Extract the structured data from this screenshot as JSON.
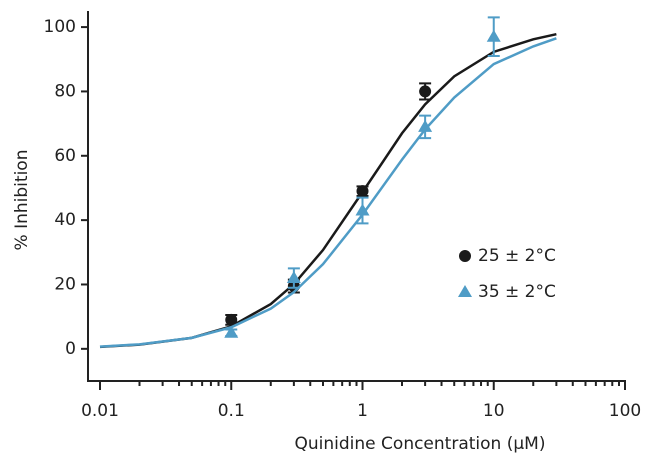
{
  "chart_data": {
    "type": "scatter",
    "xlabel": "Quinidine Concentration (µM)",
    "ylabel": "% Inhibition",
    "xscale": "log",
    "xlim": [
      0.01,
      100
    ],
    "ylim": [
      -10,
      105
    ],
    "xticks": [
      0.01,
      0.1,
      1,
      10,
      100
    ],
    "xminor_ticks": [
      0.02,
      0.03,
      0.04,
      0.05,
      0.06,
      0.07,
      0.08,
      0.09,
      0.2,
      0.3,
      0.4,
      0.5,
      0.6,
      0.7,
      0.8,
      0.9,
      2,
      3,
      4,
      5,
      6,
      7,
      8,
      9,
      20,
      30,
      40,
      50,
      60,
      70,
      80,
      90
    ],
    "yticks": [
      0,
      20,
      40,
      60,
      80,
      100
    ],
    "legend": "right",
    "series": [
      {
        "name": "25 ± 2°C",
        "color": "#1a1a1a",
        "marker": "circle",
        "x": [
          0.1,
          0.3,
          1,
          3
        ],
        "values": [
          9,
          19.5,
          49,
          80
        ],
        "errors": [
          1.5,
          2,
          1.5,
          2.5
        ],
        "fit": {
          "x": [
            0.01,
            0.02,
            0.05,
            0.1,
            0.2,
            0.3,
            0.5,
            1,
            2,
            3,
            5,
            10,
            20,
            30
          ],
          "values": [
            0.6,
            1.3,
            3.4,
            7,
            13.9,
            20.1,
            30.7,
            48.7,
            67,
            76,
            84.7,
            92.3,
            96.2,
            97.8
          ]
        }
      },
      {
        "name": "35 ± 2°C",
        "color": "#4f9cc6",
        "marker": "triangle",
        "x": [
          0.1,
          0.3,
          1,
          3,
          10
        ],
        "values": [
          5,
          22,
          43,
          69,
          97
        ],
        "errors": [
          1,
          3,
          4,
          3.5,
          6
        ],
        "fit": {
          "x": [
            0.01,
            0.02,
            0.05,
            0.1,
            0.2,
            0.3,
            0.5,
            1,
            2,
            3,
            5,
            10,
            20,
            30
          ],
          "values": [
            0.7,
            1.4,
            3.4,
            6.7,
            12.5,
            17.6,
            26.3,
            41.7,
            58.8,
            68.2,
            78.1,
            88.5,
            94,
            96.5
          ]
        }
      }
    ]
  }
}
